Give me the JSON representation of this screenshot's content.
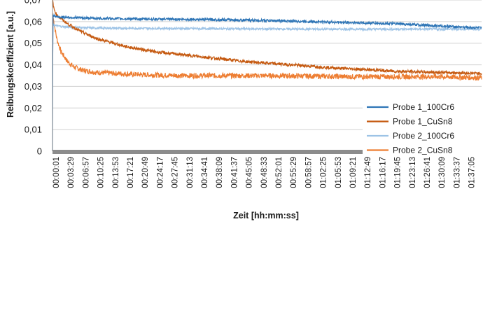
{
  "chart_data": {
    "type": "line",
    "title": "",
    "xlabel": "Zeit [hh:mm:ss]",
    "ylabel": "Reibungskoeffizient [a.u.]",
    "ylim": [
      0,
      0.07
    ],
    "y_ticks": [
      "0",
      "0,01",
      "0,02",
      "0,03",
      "0,04",
      "0,05",
      "0,06",
      "0,07"
    ],
    "x_tick_labels": [
      "00:00:01",
      "00:03:29",
      "00:06:57",
      "00:10:25",
      "00:13:53",
      "00:17:21",
      "00:20:49",
      "00:24:17",
      "00:27:45",
      "00:31:13",
      "00:34:41",
      "00:38:09",
      "00:41:37",
      "00:45:05",
      "00:48:33",
      "00:52:01",
      "00:55:29",
      "00:58:57",
      "01:02:25",
      "01:05:53",
      "01:09:21",
      "01:12:49",
      "01:16:17",
      "01:19:45",
      "01:23:13",
      "01:26:41",
      "01:30:09",
      "01:33:37",
      "01:37:05"
    ],
    "grid": "horizontal",
    "legend_position": "bottom-right",
    "series": [
      {
        "name": "Probe 1_100Cr6",
        "color": "#2e75b6",
        "noise": 0.0006,
        "x_minutes": [
          0,
          0.1,
          0.5,
          2,
          3.5,
          10,
          20,
          35,
          50,
          60,
          70,
          80,
          90,
          100
        ],
        "values": [
          0.0,
          0.063,
          0.0625,
          0.062,
          0.062,
          0.0615,
          0.0612,
          0.061,
          0.0605,
          0.06,
          0.0595,
          0.059,
          0.058,
          0.057
        ]
      },
      {
        "name": "Probe 1_CuSn8",
        "color": "#c55a11",
        "noise": 0.0007,
        "x_minutes": [
          0,
          0.3,
          1,
          3.5,
          7,
          10.5,
          17,
          24,
          31,
          38,
          45,
          52,
          59,
          66,
          73,
          80,
          90,
          100
        ],
        "values": [
          0.071,
          0.066,
          0.063,
          0.059,
          0.055,
          0.052,
          0.0485,
          0.046,
          0.0445,
          0.043,
          0.0415,
          0.0405,
          0.0395,
          0.0385,
          0.0378,
          0.037,
          0.0365,
          0.036
        ]
      },
      {
        "name": "Probe 2_100Cr6",
        "color": "#9dc3e6",
        "noise": 0.0005,
        "x_minutes": [
          0,
          0.2,
          1,
          3.5,
          10,
          30,
          60,
          90,
          100
        ],
        "values": [
          0.058,
          0.0585,
          0.058,
          0.0575,
          0.057,
          0.0568,
          0.0565,
          0.0565,
          0.0565
        ]
      },
      {
        "name": "Probe 2_CuSn8",
        "color": "#ed7d31",
        "noise": 0.0012,
        "x_minutes": [
          0,
          0.3,
          1,
          2,
          3.5,
          5,
          7,
          10,
          15,
          20,
          30,
          50,
          70,
          90,
          100
        ],
        "values": [
          0.064,
          0.06,
          0.052,
          0.046,
          0.0415,
          0.039,
          0.0375,
          0.0365,
          0.036,
          0.0355,
          0.035,
          0.035,
          0.0345,
          0.0345,
          0.034
        ]
      }
    ]
  }
}
